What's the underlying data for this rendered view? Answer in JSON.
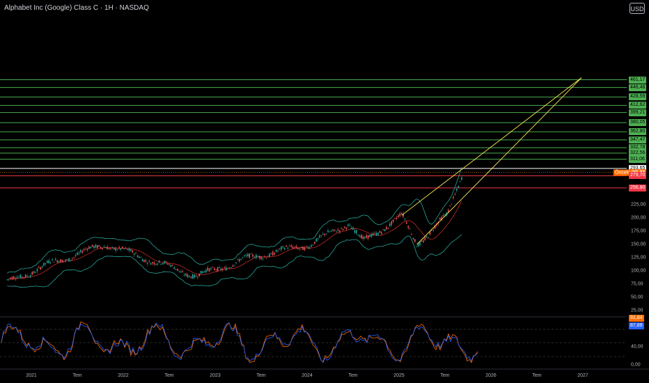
{
  "header": {
    "title": "Alphabet Inc (Google) Class C · 1H · NASDAQ",
    "currency_button": "USD"
  },
  "colors": {
    "green_line": "#4caf50",
    "red_line": "#f23645",
    "trend_line": "#ffee58",
    "bb_line": "#26a69a",
    "sma_line": "#c62828",
    "up_candle": "#26a69a",
    "down_candle": "#ef5350",
    "stoch_k": "#2962ff",
    "stoch_d": "#ff6d00"
  },
  "price_axis_labels": [
    "225,00",
    "200,00",
    "175,00",
    "150,00",
    "125,00",
    "100,00",
    "75,00",
    "50,00",
    "25,00"
  ],
  "green_levels": [
    "461,17",
    "446,48",
    "428,59",
    "412,62",
    "399,21",
    "380,05",
    "362,80",
    "347,47",
    "332,78",
    "322,56",
    "311,06"
  ],
  "white_level": "293,65",
  "current_price_tag": "285,88",
  "previous_close_label": "Önceki",
  "red_levels": [
    "279,70",
    "256,80"
  ],
  "indicator_axis": {
    "top_tag_orange": "91,84",
    "top_tag_blue": "87,89",
    "mid_label": "40,00",
    "low_label": "0,00"
  },
  "time_axis": [
    "2021",
    "Tem",
    "2022",
    "Tem",
    "2023",
    "Tem",
    "2024",
    "Tem",
    "2025",
    "Tem",
    "2026",
    "Tem",
    "2027"
  ],
  "chart_data": {
    "type": "candlestick",
    "series_anchor_prices": [
      {
        "x": "2020-10",
        "close": 78
      },
      {
        "x": "2021-04",
        "close": 115
      },
      {
        "x": "2021-11",
        "close": 150
      },
      {
        "x": "2022-06",
        "close": 115
      },
      {
        "x": "2022-11",
        "close": 90
      },
      {
        "x": "2023-06",
        "close": 125
      },
      {
        "x": "2024-02",
        "close": 150
      },
      {
        "x": "2024-07",
        "close": 190
      },
      {
        "x": "2024-09",
        "close": 155
      },
      {
        "x": "2025-02",
        "close": 205
      },
      {
        "x": "2025-04",
        "close": 150
      },
      {
        "x": "2025-08",
        "close": 205
      },
      {
        "x": "2025-10",
        "close": 285
      }
    ],
    "ylim": [
      0,
      480
    ],
    "trendlines": [
      "2025-04 → 2026-12 (461)",
      "2025-02 → 2026-12 (461)"
    ]
  }
}
